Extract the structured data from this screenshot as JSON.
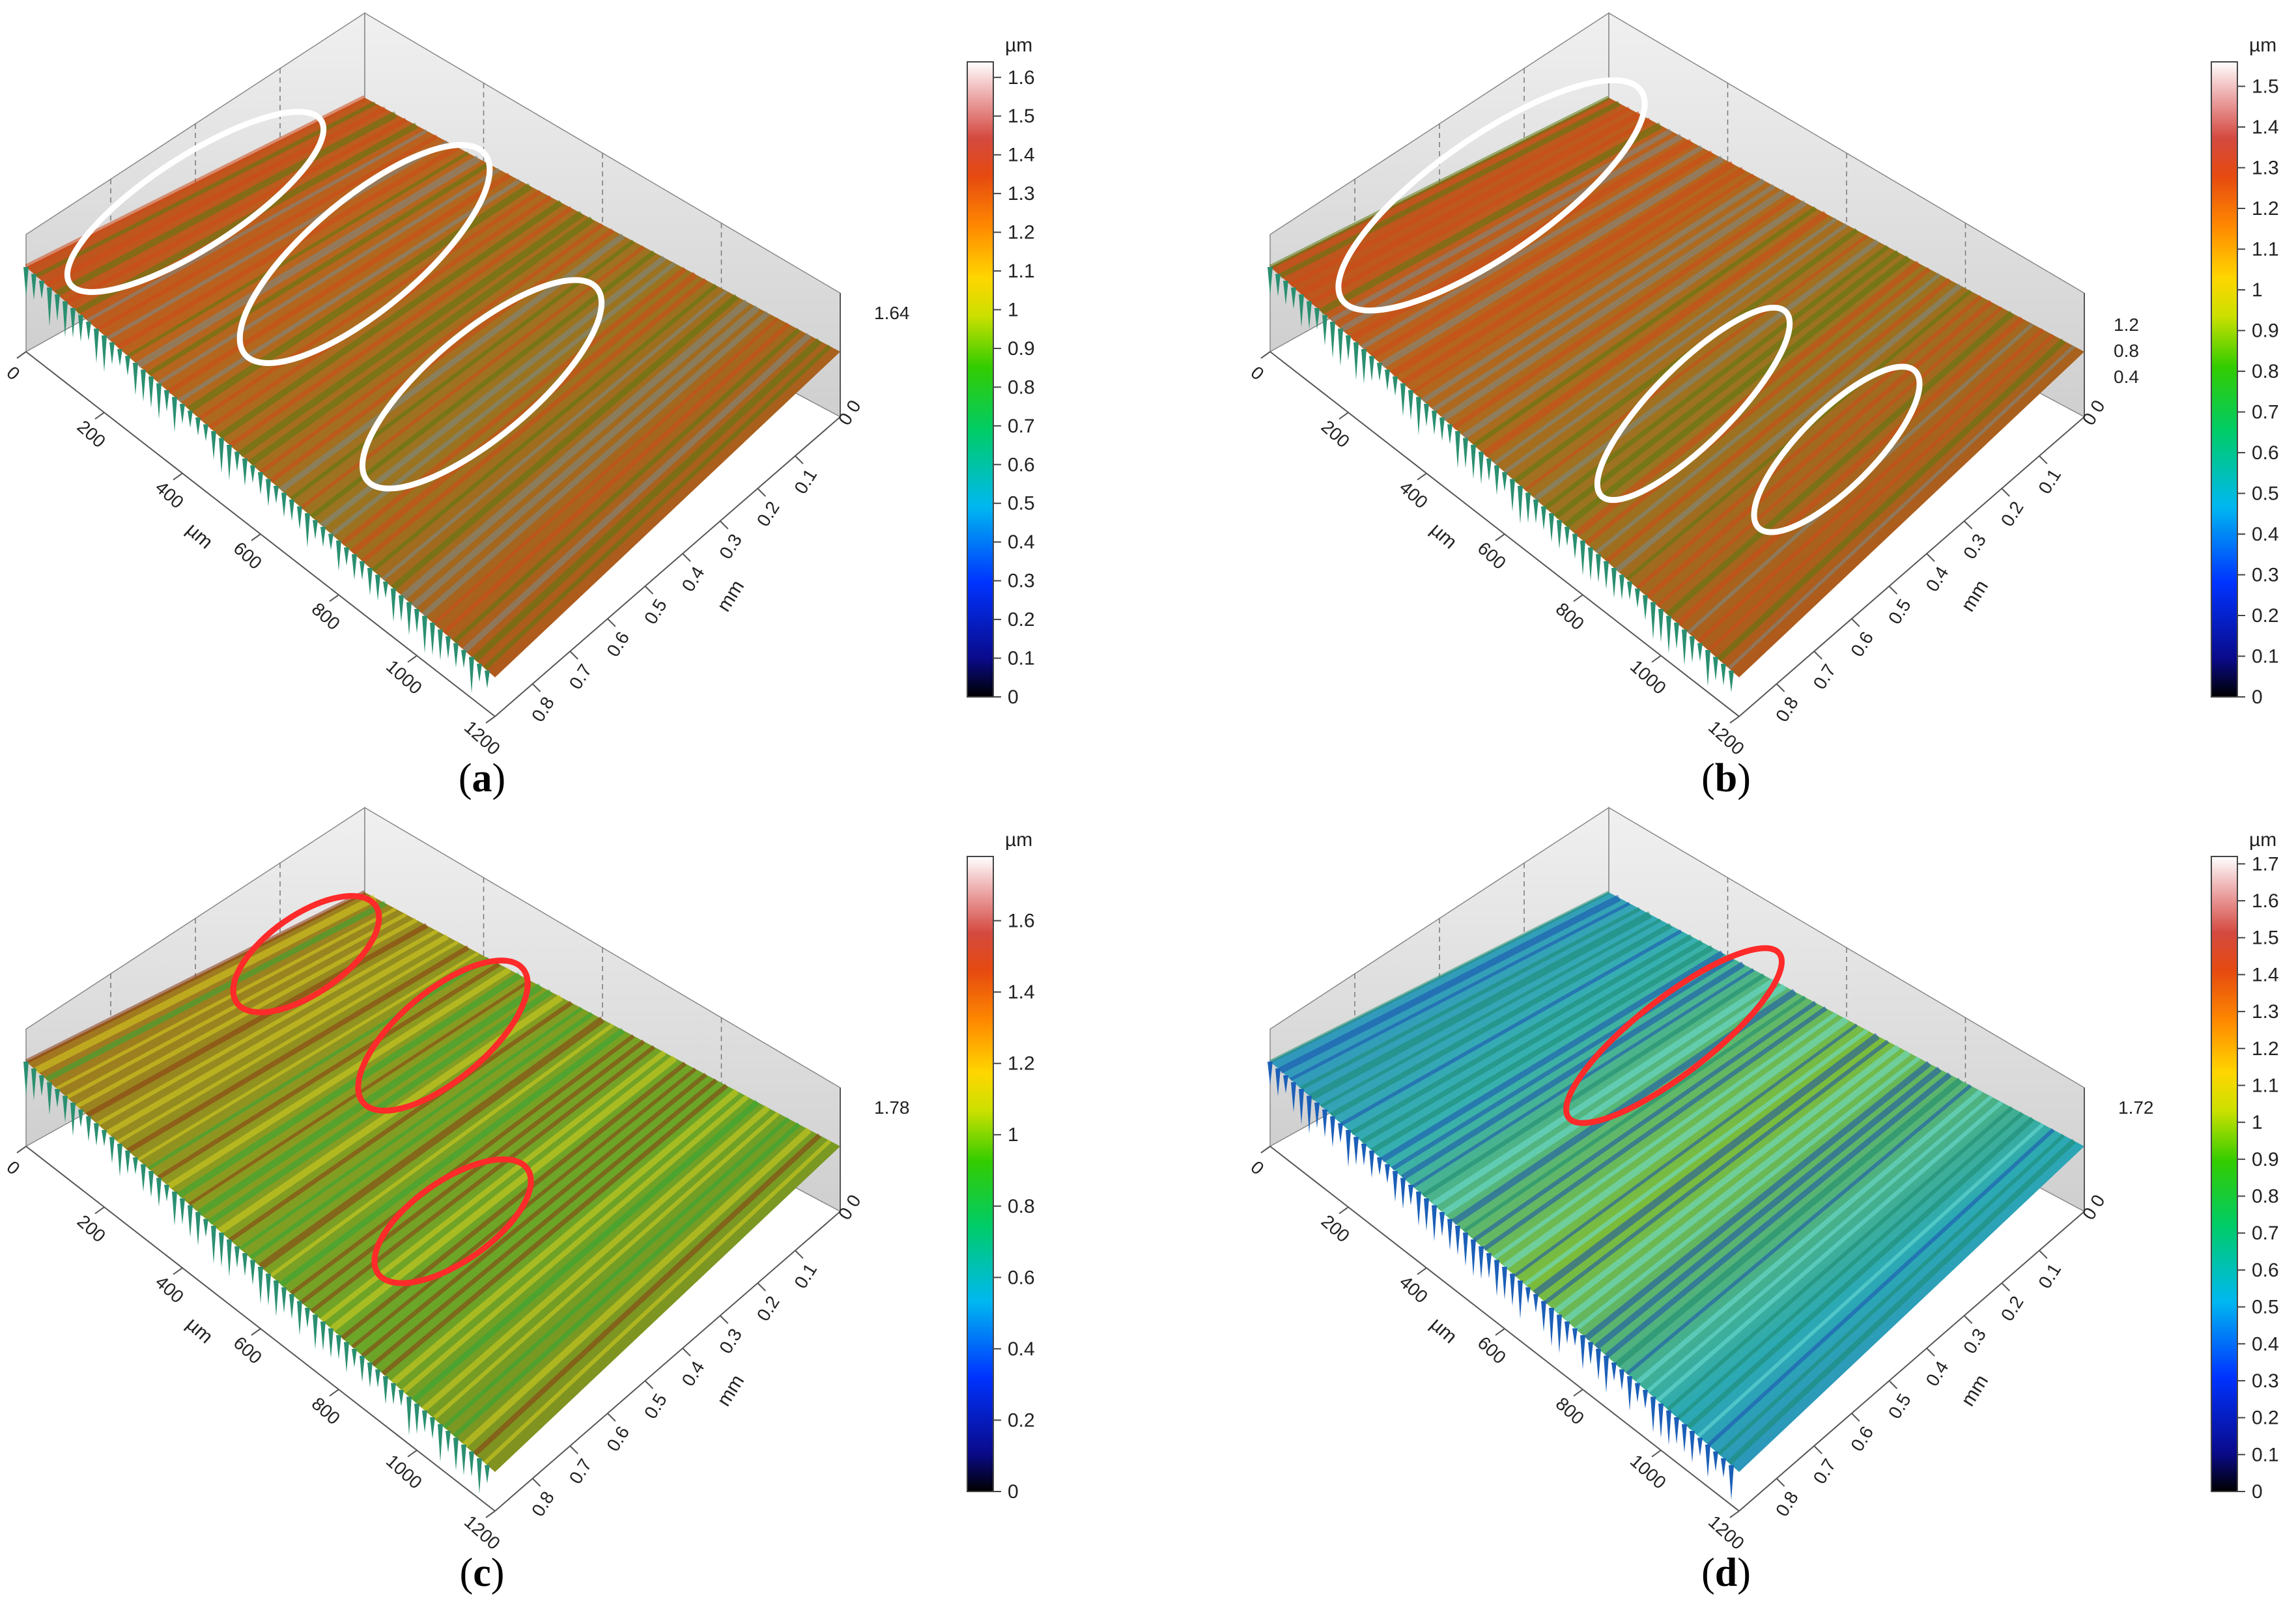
{
  "panels": [
    {
      "id": "a",
      "caption": "(a)",
      "letter": "a",
      "unit": "µm",
      "colorbar_max": 1.64,
      "colorbar_ticks": [
        "1.6",
        "1.5",
        "1.4",
        "1.3",
        "1.2",
        "1.1",
        "1",
        "0.9",
        "0.8",
        "0.7",
        "0.6",
        "0.5",
        "0.4",
        "0.3",
        "0.2",
        "0.1",
        "0"
      ],
      "z_axis_labels": [
        "1.64",
        "0 0"
      ],
      "x_axis_unit": "µm",
      "x_axis_ticks": [
        "0",
        "200",
        "400",
        "600",
        "800",
        "1000",
        "1200"
      ],
      "y_axis_unit": "mm",
      "y_axis_ticks": [
        "0.1",
        "0.2",
        "0.3",
        "0.4",
        "0.5",
        "0.6",
        "0.7",
        "0.8"
      ],
      "surface_palette": "red",
      "ellipse_color": "#ffffff",
      "ellipse_count": 3
    },
    {
      "id": "b",
      "caption": "(b)",
      "letter": "b",
      "unit": "µm",
      "colorbar_max": 1.56,
      "colorbar_ticks": [
        "1.5",
        "1.4",
        "1.3",
        "1.2",
        "1.1",
        "1",
        "0.9",
        "0.8",
        "0.7",
        "0.6",
        "0.5",
        "0.4",
        "0.3",
        "0.2",
        "0.1",
        "0"
      ],
      "z_axis_labels": [
        "1.2",
        "0.8",
        "0.4",
        "0 0"
      ],
      "x_axis_unit": "µm",
      "x_axis_ticks": [
        "0",
        "200",
        "400",
        "600",
        "800",
        "1000",
        "1200"
      ],
      "y_axis_unit": "mm",
      "y_axis_ticks": [
        "0.1",
        "0.2",
        "0.3",
        "0.4",
        "0.5",
        "0.6",
        "0.7",
        "0.8"
      ],
      "surface_palette": "red",
      "ellipse_color": "#ffffff",
      "ellipse_count": 3
    },
    {
      "id": "c",
      "caption": "(c)",
      "letter": "c",
      "unit": "µm",
      "colorbar_max": 1.78,
      "colorbar_ticks": [
        "1.6",
        "1.4",
        "1.2",
        "1",
        "0.8",
        "0.6",
        "0.4",
        "0.2",
        "0"
      ],
      "z_axis_labels": [
        "1.78",
        "0 0"
      ],
      "x_axis_unit": "µm",
      "x_axis_ticks": [
        "0",
        "200",
        "400",
        "600",
        "800",
        "1000",
        "1200"
      ],
      "y_axis_unit": "mm",
      "y_axis_ticks": [
        "0.1",
        "0.2",
        "0.3",
        "0.4",
        "0.5",
        "0.6",
        "0.7",
        "0.8"
      ],
      "surface_palette": "olive",
      "ellipse_color": "#ff2a2a",
      "ellipse_count": 3
    },
    {
      "id": "d",
      "caption": "(d)",
      "letter": "d",
      "unit": "µm",
      "colorbar_max": 1.72,
      "colorbar_ticks": [
        "1.7",
        "1.6",
        "1.5",
        "1.4",
        "1.3",
        "1.2",
        "1.1",
        "1",
        "0.9",
        "0.8",
        "0.7",
        "0.6",
        "0.5",
        "0.4",
        "0.3",
        "0.2",
        "0.1",
        "0"
      ],
      "z_axis_labels": [
        "1.72",
        "0 0"
      ],
      "x_axis_unit": "µm",
      "x_axis_ticks": [
        "0",
        "200",
        "400",
        "600",
        "800",
        "1000",
        "1200"
      ],
      "y_axis_unit": "mm",
      "y_axis_ticks": [
        "0.1",
        "0.2",
        "0.3",
        "0.4",
        "0.5",
        "0.6",
        "0.7",
        "0.8"
      ],
      "surface_palette": "cyan",
      "ellipse_color": "#ff2a2a",
      "ellipse_count": 1
    }
  ]
}
